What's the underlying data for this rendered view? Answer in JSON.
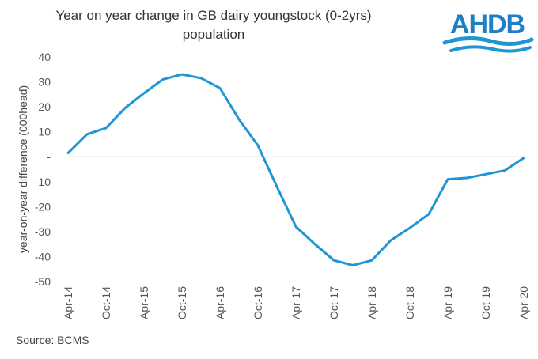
{
  "chart_data": {
    "type": "line",
    "title": "Year on year change in GB dairy youngstock (0-2yrs) population",
    "title_lines": [
      "Year on year change in GB dairy youngstock (0-2yrs)",
      "population"
    ],
    "xlabel": "",
    "ylabel": "year-on-year difference (000head)",
    "ylim": [
      -50,
      40
    ],
    "yticks": [
      40,
      30,
      20,
      10,
      0,
      -10,
      -20,
      -30,
      -40,
      -50
    ],
    "ytick_labels": [
      "40",
      "30",
      "20",
      "10",
      "-",
      "-10",
      "-20",
      "-30",
      "-40",
      "-50"
    ],
    "x_range": [
      0,
      72
    ],
    "xticks": [
      {
        "x": 0,
        "label": "Apr-14"
      },
      {
        "x": 6,
        "label": "Oct-14"
      },
      {
        "x": 12,
        "label": "Apr-15"
      },
      {
        "x": 18,
        "label": "Oct-15"
      },
      {
        "x": 24,
        "label": "Apr-16"
      },
      {
        "x": 30,
        "label": "Oct-16"
      },
      {
        "x": 36,
        "label": "Apr-17"
      },
      {
        "x": 42,
        "label": "Oct-17"
      },
      {
        "x": 48,
        "label": "Apr-18"
      },
      {
        "x": 54,
        "label": "Oct-18"
      },
      {
        "x": 60,
        "label": "Apr-19"
      },
      {
        "x": 66,
        "label": "Oct-19"
      },
      {
        "x": 72,
        "label": "Apr-20"
      }
    ],
    "series": [
      {
        "name": "GB dairy youngstock (0-2yrs)",
        "color": "#1f96d4",
        "x": [
          0,
          3,
          6,
          9,
          12,
          15,
          18,
          21,
          24,
          27,
          30,
          33,
          36,
          39,
          42,
          45,
          48,
          51,
          54,
          57,
          60,
          63,
          66,
          69,
          72
        ],
        "values": [
          1.5,
          9,
          11.5,
          19.5,
          25.5,
          31,
          33,
          31.5,
          27.5,
          15,
          4.5,
          -12,
          -28,
          -35,
          -41.5,
          -43.5,
          -41.5,
          -33.5,
          -28.5,
          -23,
          -9,
          -8.5,
          -7,
          -5.5,
          -0.5
        ]
      }
    ]
  },
  "logo": {
    "text": "AHDB",
    "color": "#1f7fc4",
    "wave_color": "#1f96d4"
  },
  "source": "Source: BCMS"
}
